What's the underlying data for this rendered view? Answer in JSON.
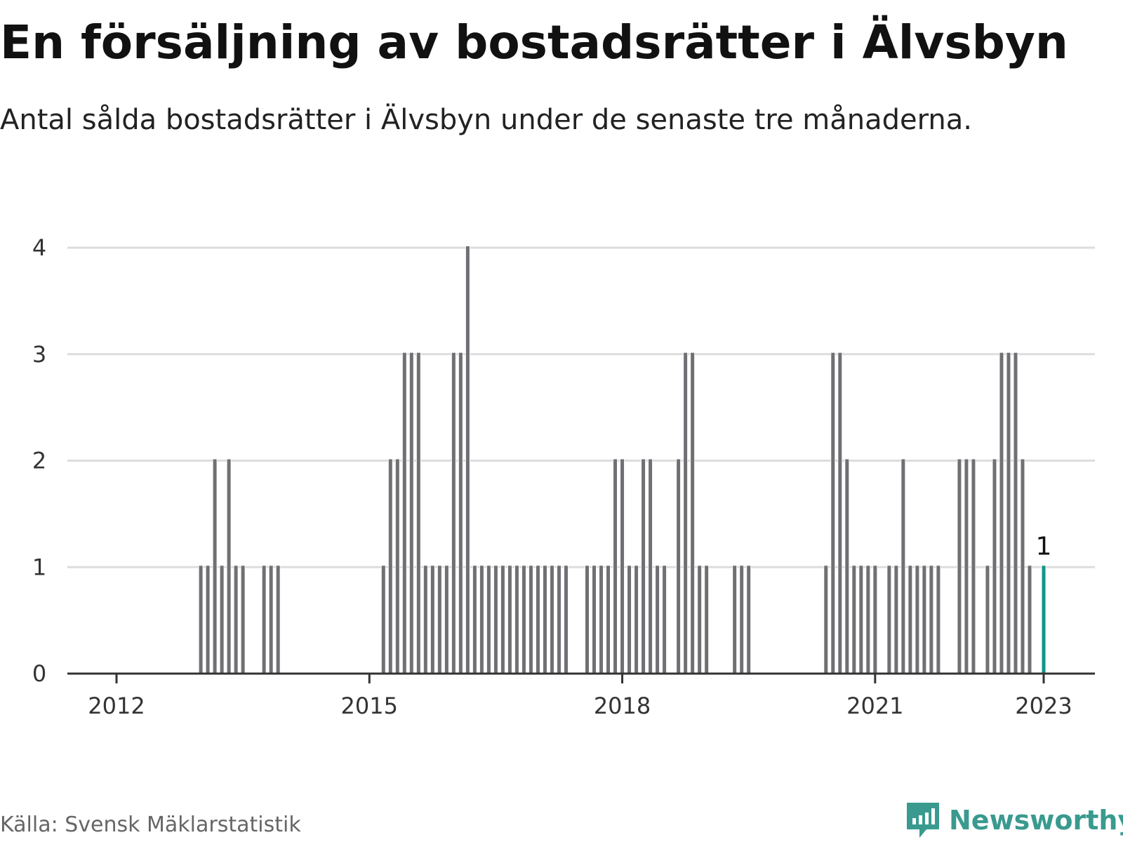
{
  "title": "En försäljning av bostadsrätter i Älvsbyn",
  "subtitle": "Antal sålda bostadsrätter i Älvsbyn under de senaste tre månaderna.",
  "source": "Källa: Svensk Mäklarstatistik",
  "brand": "Newsworthy",
  "colors": {
    "bar": "#707074",
    "highlight": "#12968a",
    "grid": "#dddddd",
    "axis": "#333333",
    "brand": "#3a9a8f"
  },
  "chart_data": {
    "type": "bar",
    "ylim": [
      0,
      4
    ],
    "yticks": [
      0,
      1,
      2,
      3,
      4
    ],
    "xticks": [
      {
        "label": "2012",
        "date": "2012-01"
      },
      {
        "label": "2015",
        "date": "2015-01"
      },
      {
        "label": "2018",
        "date": "2018-01"
      },
      {
        "label": "2021",
        "date": "2021-01"
      },
      {
        "label": "2023",
        "date": "2023-01"
      }
    ],
    "x": [
      "2013-01",
      "2013-02",
      "2013-03",
      "2013-04",
      "2013-05",
      "2013-06",
      "2013-07",
      "2013-10",
      "2013-11",
      "2013-12",
      "2015-03",
      "2015-04",
      "2015-05",
      "2015-06",
      "2015-07",
      "2015-08",
      "2015-09",
      "2015-10",
      "2015-11",
      "2015-12",
      "2016-01",
      "2016-02",
      "2016-03",
      "2016-04",
      "2016-05",
      "2016-06",
      "2016-07",
      "2016-08",
      "2016-09",
      "2016-10",
      "2016-11",
      "2016-12",
      "2017-01",
      "2017-02",
      "2017-03",
      "2017-04",
      "2017-05",
      "2017-08",
      "2017-09",
      "2017-10",
      "2017-11",
      "2017-12",
      "2018-01",
      "2018-02",
      "2018-03",
      "2018-04",
      "2018-05",
      "2018-06",
      "2018-07",
      "2018-09",
      "2018-10",
      "2018-11",
      "2018-12",
      "2019-01",
      "2019-05",
      "2019-06",
      "2019-07",
      "2020-06",
      "2020-07",
      "2020-08",
      "2020-09",
      "2020-10",
      "2020-11",
      "2020-12",
      "2021-01",
      "2021-03",
      "2021-04",
      "2021-05",
      "2021-06",
      "2021-07",
      "2021-08",
      "2021-09",
      "2021-10",
      "2022-01",
      "2022-02",
      "2022-03",
      "2022-05",
      "2022-06",
      "2022-07",
      "2022-08",
      "2022-09",
      "2022-10",
      "2022-11",
      "2023-01"
    ],
    "values": [
      1,
      1,
      2,
      1,
      2,
      1,
      1,
      1,
      1,
      1,
      1,
      2,
      2,
      3,
      3,
      3,
      1,
      1,
      1,
      1,
      3,
      3,
      4,
      1,
      1,
      1,
      1,
      1,
      1,
      1,
      1,
      1,
      1,
      1,
      1,
      1,
      1,
      1,
      1,
      1,
      1,
      2,
      2,
      1,
      1,
      2,
      2,
      1,
      1,
      2,
      3,
      3,
      1,
      1,
      1,
      1,
      1,
      1,
      3,
      3,
      2,
      1,
      1,
      1,
      1,
      1,
      1,
      2,
      1,
      1,
      1,
      1,
      1,
      2,
      2,
      2,
      1,
      2,
      3,
      3,
      3,
      2,
      1,
      1
    ],
    "highlight_last": true,
    "annotation": {
      "label": "1",
      "date": "2023-01"
    }
  }
}
